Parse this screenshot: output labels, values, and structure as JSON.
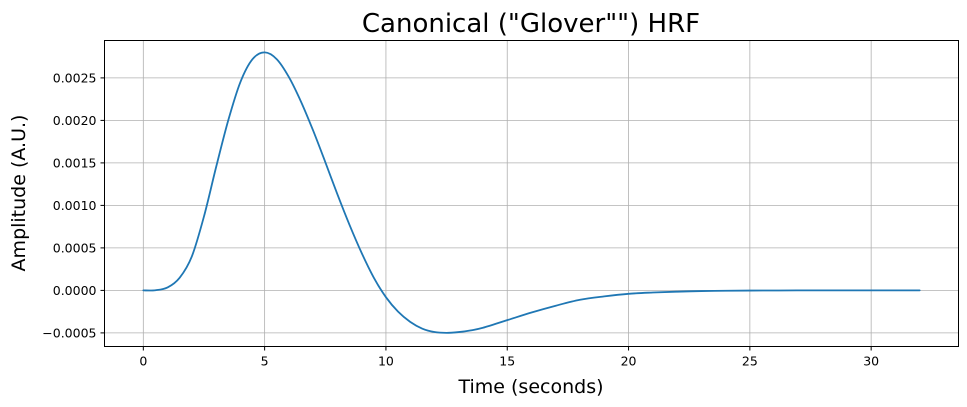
{
  "chart_data": {
    "type": "line",
    "title": "Canonical (\"Glover\"\") HRF",
    "xlabel": "Time (seconds)",
    "ylabel": "Amplitude (A.U.)",
    "xlim": [
      -1.6,
      33.6
    ],
    "ylim": [
      -0.00066,
      0.00294
    ],
    "xticks": [
      0,
      5,
      10,
      15,
      20,
      25,
      30
    ],
    "xtick_labels": [
      "0",
      "5",
      "10",
      "15",
      "20",
      "25",
      "30"
    ],
    "yticks": [
      -0.0005,
      0.0,
      0.0005,
      0.001,
      0.0015,
      0.002,
      0.0025
    ],
    "ytick_labels": [
      "−0.0005",
      "0.0000",
      "0.0005",
      "0.0010",
      "0.0015",
      "0.0020",
      "0.0025"
    ],
    "grid": true,
    "color": "#1f77b4",
    "series": [
      {
        "x": [
          0,
          0.5,
          1,
          1.5,
          2,
          2.5,
          3,
          3.5,
          4,
          4.5,
          5,
          5.5,
          6,
          6.5,
          7,
          7.5,
          8,
          8.5,
          9,
          9.5,
          10,
          10.5,
          11,
          11.5,
          12,
          12.5,
          13,
          13.5,
          14,
          15,
          16,
          17,
          18,
          19,
          20,
          21,
          22,
          23,
          24,
          25,
          26,
          27,
          28,
          29,
          30,
          31,
          32
        ],
        "values": [
          0.0,
          2e-06,
          3.5e-05,
          0.00015,
          0.0004,
          0.00087,
          0.00145,
          0.002,
          0.00245,
          0.00272,
          0.0028,
          0.00272,
          0.00251,
          0.00222,
          0.00188,
          0.00151,
          0.00113,
          0.00077,
          0.00044,
          0.00015,
          -8e-05,
          -0.00025,
          -0.00037,
          -0.00045,
          -0.00049,
          -0.0005,
          -0.00049,
          -0.00047,
          -0.00044,
          -0.00035,
          -0.00026,
          -0.00018,
          -0.00011,
          -7e-05,
          -4e-05,
          -2.5e-05,
          -1.5e-05,
          -8e-06,
          -4e-06,
          -2e-06,
          -1e-06,
          0.0,
          0.0,
          0.0,
          0.0,
          0.0,
          0.0
        ]
      }
    ]
  }
}
